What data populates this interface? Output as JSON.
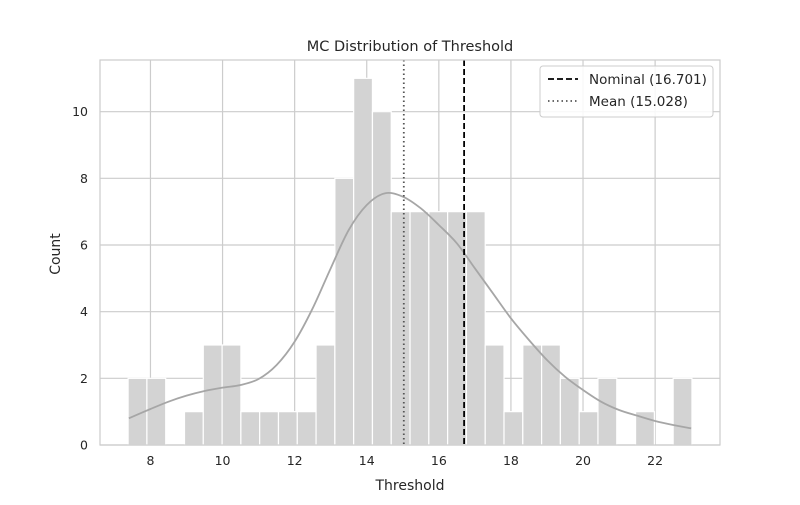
{
  "chart_data": {
    "type": "bar",
    "title": "MC Distribution of Threshold",
    "xlabel": "Threshold",
    "ylabel": "Count",
    "xlim": [
      6.6,
      23.8
    ],
    "ylim": [
      0,
      11.55
    ],
    "grid": true,
    "legend_position": "top-right",
    "x_ticks": [
      8,
      10,
      12,
      14,
      16,
      18,
      20,
      22
    ],
    "y_ticks": [
      0,
      2,
      4,
      6,
      8,
      10
    ],
    "bin_start": 7.38,
    "bin_width": 0.5214,
    "counts": [
      2,
      2,
      0,
      1,
      3,
      3,
      1,
      1,
      1,
      1,
      3,
      8,
      11,
      10,
      7,
      7,
      7,
      7,
      7,
      3,
      1,
      3,
      3,
      2,
      1,
      2,
      0,
      1,
      0,
      2
    ],
    "bar_color": "#d3d3d3",
    "kde_color": "#a6a6a6",
    "kde_curve": {
      "x": [
        7.4,
        8.0,
        8.5,
        9.0,
        9.5,
        10.0,
        10.5,
        11.0,
        11.5,
        12.0,
        12.5,
        13.0,
        13.5,
        14.0,
        14.5,
        15.0,
        15.5,
        16.0,
        16.5,
        17.0,
        17.5,
        18.0,
        18.5,
        19.0,
        19.5,
        20.0,
        20.5,
        21.0,
        21.5,
        22.0,
        22.5,
        23.0
      ],
      "y": [
        0.8,
        1.08,
        1.3,
        1.48,
        1.62,
        1.72,
        1.8,
        1.98,
        2.4,
        3.1,
        4.1,
        5.3,
        6.45,
        7.2,
        7.55,
        7.45,
        7.1,
        6.6,
        6.05,
        5.3,
        4.55,
        3.8,
        3.15,
        2.55,
        2.05,
        1.65,
        1.3,
        1.05,
        0.88,
        0.72,
        0.6,
        0.5
      ]
    },
    "reference_lines": [
      {
        "name": "Nominal (16.701)",
        "x": 16.701,
        "style": "dashed",
        "color": "#000000"
      },
      {
        "name": "Mean (15.028)",
        "x": 15.028,
        "style": "dotted",
        "color": "#555555"
      }
    ]
  }
}
